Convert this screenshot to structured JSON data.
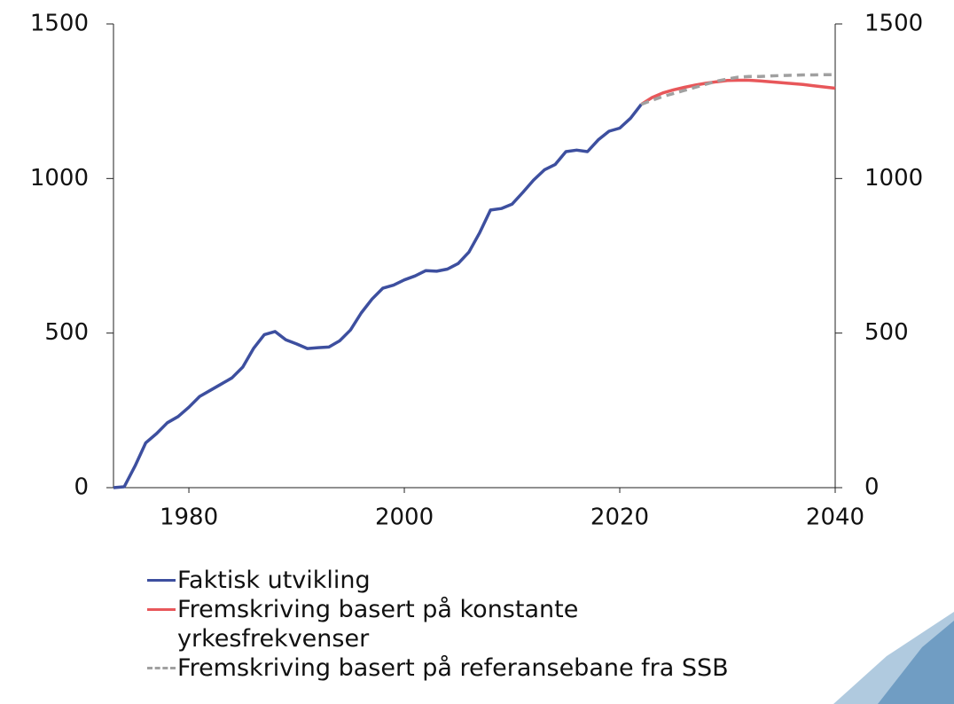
{
  "chart_data": {
    "type": "line",
    "x": [
      1973,
      1974,
      1975,
      1976,
      1977,
      1978,
      1979,
      1980,
      1981,
      1982,
      1983,
      1984,
      1985,
      1986,
      1987,
      1988,
      1989,
      1990,
      1991,
      1992,
      1993,
      1994,
      1995,
      1996,
      1997,
      1998,
      1999,
      2000,
      2001,
      2002,
      2003,
      2004,
      2005,
      2006,
      2007,
      2008,
      2009,
      2010,
      2011,
      2012,
      2013,
      2014,
      2015,
      2016,
      2017,
      2018,
      2019,
      2020,
      2021,
      2022,
      2023,
      2024,
      2025,
      2026,
      2027,
      2028,
      2029,
      2030,
      2031,
      2032,
      2033,
      2034,
      2035,
      2036,
      2037,
      2038,
      2039,
      2040
    ],
    "series": [
      {
        "name": "Faktisk utvikling",
        "color": "#3d4f9f",
        "dash": false,
        "values": [
          0,
          3,
          70,
          145,
          175,
          210,
          230,
          260,
          295,
          315,
          335,
          355,
          390,
          450,
          495,
          505,
          478,
          465,
          450,
          453,
          455,
          475,
          510,
          565,
          610,
          645,
          655,
          672,
          685,
          702,
          700,
          707,
          725,
          762,
          825,
          898,
          903,
          917,
          955,
          995,
          1028,
          1045,
          1087,
          1092,
          1087,
          1125,
          1153,
          1163,
          1195,
          1240,
          null,
          null,
          null,
          null,
          null,
          null,
          null,
          null,
          null,
          null,
          null,
          null,
          null,
          null,
          null,
          null,
          null,
          null
        ]
      },
      {
        "name": "Fremskriving basert på konstante yrkesfrekvenser",
        "color": "#e8575a",
        "dash": false,
        "values": [
          null,
          null,
          null,
          null,
          null,
          null,
          null,
          null,
          null,
          null,
          null,
          null,
          null,
          null,
          null,
          null,
          null,
          null,
          null,
          null,
          null,
          null,
          null,
          null,
          null,
          null,
          null,
          null,
          null,
          null,
          null,
          null,
          null,
          null,
          null,
          null,
          null,
          null,
          null,
          null,
          null,
          null,
          null,
          null,
          null,
          null,
          null,
          null,
          null,
          1240,
          1262,
          1277,
          1287,
          1295,
          1302,
          1308,
          1313,
          1317,
          1318,
          1318,
          1316,
          1313,
          1310,
          1307,
          1304,
          1300,
          1296,
          1292
        ]
      },
      {
        "name": "Fremskriving basert på referansebane fra SSB",
        "color": "#a0a0a0",
        "dash": true,
        "values": [
          null,
          null,
          null,
          null,
          null,
          null,
          null,
          null,
          null,
          null,
          null,
          null,
          null,
          null,
          null,
          null,
          null,
          null,
          null,
          null,
          null,
          null,
          null,
          null,
          null,
          null,
          null,
          null,
          null,
          null,
          null,
          null,
          null,
          null,
          null,
          null,
          null,
          null,
          null,
          null,
          null,
          null,
          null,
          null,
          null,
          null,
          null,
          null,
          null,
          1240,
          1253,
          1265,
          1275,
          1285,
          1295,
          1305,
          1315,
          1322,
          1328,
          1330,
          1330,
          1332,
          1333,
          1334,
          1335,
          1335,
          1336,
          1336
        ]
      }
    ],
    "xlim": [
      1973,
      2040
    ],
    "xticks": [
      1980,
      2000,
      2020,
      2040
    ],
    "ylim": [
      0,
      1500
    ],
    "yticks": [
      0,
      500,
      1000,
      1500
    ],
    "y2lim": [
      0,
      1500
    ],
    "y2ticks": [
      0,
      500,
      1000,
      1500
    ]
  }
}
